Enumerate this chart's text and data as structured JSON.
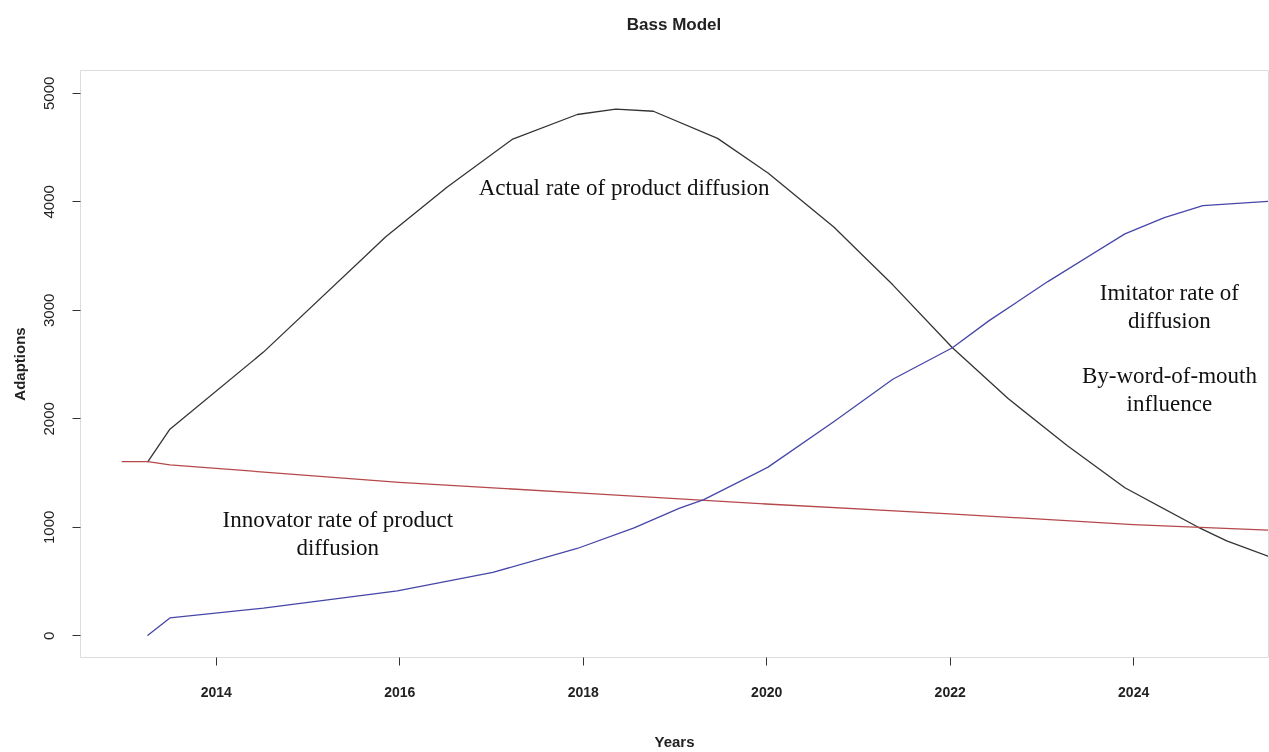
{
  "chart_data": {
    "type": "line",
    "title": "Bass Model",
    "xlabel": "Years",
    "ylabel": "Adaptions",
    "xlim": [
      2012.52,
      2025.47
    ],
    "ylim": [
      -200,
      5210
    ],
    "xticks": [
      2014,
      2016,
      2018,
      2020,
      2022,
      2024
    ],
    "yticks": [
      0,
      1000,
      2000,
      3000,
      4000,
      5000
    ],
    "series": [
      {
        "name": "Actual rate of product diffusion",
        "color": "#333333",
        "x": [
          2013.26,
          2013.5,
          2014.52,
          2015.85,
          2016.52,
          2017.23,
          2017.94,
          2018.36,
          2018.77,
          2019.47,
          2020.02,
          2020.74,
          2021.38,
          2022.03,
          2022.64,
          2023.28,
          2023.91,
          2024.7,
          2025.02,
          2025.47
        ],
        "values": [
          1600,
          1900,
          2610,
          3670,
          4130,
          4570,
          4800,
          4850,
          4830,
          4580,
          4260,
          3760,
          3230,
          2650,
          2180,
          1750,
          1360,
          1000,
          870,
          730
        ]
      },
      {
        "name": "Innovator rate of product\ndiffusion",
        "color": "#b5484b",
        "x": [
          2012.98,
          2013.26,
          2013.5,
          2016.0,
          2018.0,
          2020.0,
          2022.0,
          2024.0,
          2025.47
        ],
        "values": [
          1600,
          1600,
          1570,
          1410,
          1310,
          1210,
          1120,
          1020,
          970
        ]
      },
      {
        "name": "Imitator rate of\ndiffusion",
        "color": "#4646a8",
        "x": [
          2013.26,
          2013.5,
          2014.52,
          2015.98,
          2017.02,
          2017.94,
          2018.56,
          2019.05,
          2019.32,
          2020.02,
          2020.74,
          2021.38,
          2022.03,
          2022.43,
          2023.07,
          2023.91,
          2024.34,
          2024.76,
          2025.47
        ],
        "values": [
          0,
          160,
          250,
          410,
          580,
          800,
          990,
          1170,
          1250,
          1550,
          1970,
          2360,
          2650,
          2900,
          3260,
          3700,
          3850,
          3960,
          4000
        ]
      }
    ],
    "annotations": [
      "By-word-of-mouth\ninfluence"
    ]
  }
}
